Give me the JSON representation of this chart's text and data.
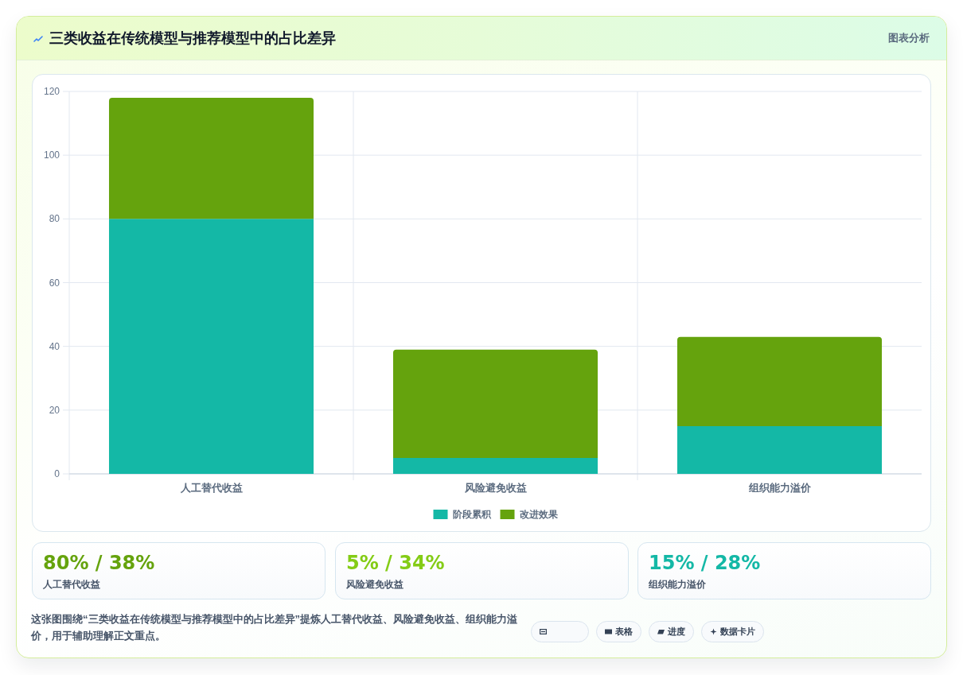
{
  "chart_data": {
    "type": "bar",
    "title": "三类收益在传统模型与推荐模型中的占比差异",
    "categories": [
      "人工替代收益",
      "风险避免收益",
      "组织能力溢价"
    ],
    "stacked": true,
    "series": [
      {
        "name": "阶段累积",
        "color": "#14b8a6",
        "values": [
          80,
          5,
          15
        ]
      },
      {
        "name": "改进效果",
        "color": "#65a30d",
        "values": [
          38,
          34,
          28
        ]
      }
    ],
    "ylim": [
      0,
      120
    ],
    "yticks": [
      0,
      20,
      40,
      60,
      80,
      100,
      120
    ],
    "grid": true,
    "legend": "bottom",
    "annotations": [
      "图表分析",
      "80% / 38%",
      "人工替代收益",
      "5% / 34%",
      "风险避免收益",
      "15% / 28%",
      "组织能力溢价",
      "这张图围绕“三类收益在传统模型与推荐模型中的占比差异”提炼人工替代收益、风险避免收益、组织能力溢价，用于辅助理解正文重点。",
      "表格",
      "进度",
      "数据卡片"
    ]
  }
}
